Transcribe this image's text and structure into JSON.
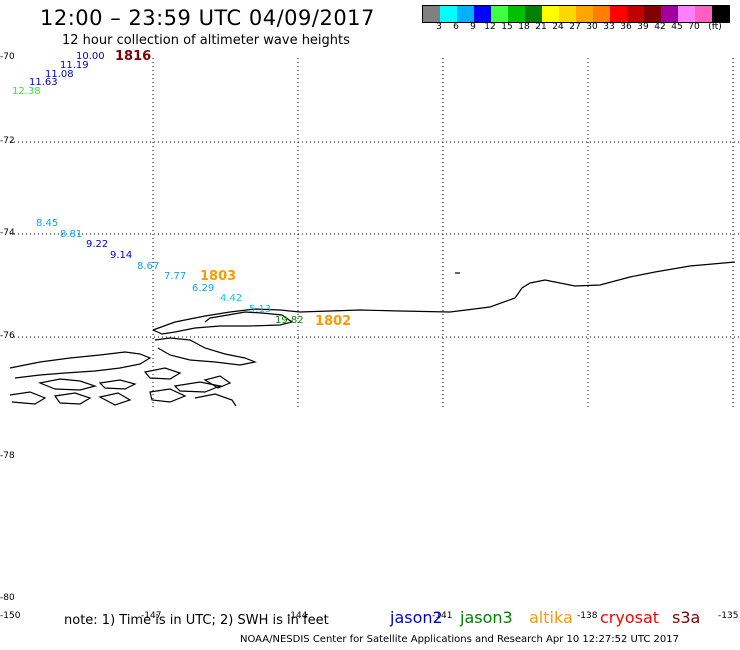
{
  "header": {
    "title": "12:00 – 23:59 UTC 04/09/2017",
    "subtitle": "12 hour collection of altimeter wave heights"
  },
  "colorbar": {
    "colors": [
      "#808080",
      "#00ffff",
      "#00b2ff",
      "#0000ff",
      "#40ff40",
      "#00c000",
      "#008000",
      "#ffff00",
      "#ffd700",
      "#ffa500",
      "#ff8000",
      "#ff0000",
      "#c00000",
      "#800000",
      "#a000a0",
      "#ff80ff",
      "#ff60c0",
      "#000000"
    ],
    "labels": [
      "3",
      "6",
      "9",
      "12",
      "15",
      "18",
      "21",
      "24",
      "27",
      "30",
      "33",
      "36",
      "39",
      "42",
      "45",
      "70",
      "(ft)"
    ]
  },
  "axes": {
    "lat_labels": [
      "-70",
      "-72",
      "-74",
      "-76",
      "-78",
      "-80"
    ],
    "lon_labels": [
      "-150",
      "-147",
      "-144",
      "-141",
      "-138",
      "-135"
    ]
  },
  "observations": [
    {
      "text": "10.00",
      "color": "#0000cc"
    },
    {
      "text": "11.19",
      "color": "#0000cc"
    },
    {
      "text": "11.08",
      "color": "#0000cc"
    },
    {
      "text": "11.63",
      "color": "#0000cc"
    },
    {
      "text": "12.38",
      "color": "#40e040"
    },
    {
      "text": "8.45",
      "color": "#00aaee"
    },
    {
      "text": "8.81",
      "color": "#00aaee"
    },
    {
      "text": "9.22",
      "color": "#0000cc"
    },
    {
      "text": "9.14",
      "color": "#0000cc"
    },
    {
      "text": "8.67",
      "color": "#00aaee"
    },
    {
      "text": "7.77",
      "color": "#00aaee"
    },
    {
      "text": "6.29",
      "color": "#00aaee"
    },
    {
      "text": "4.42",
      "color": "#00ccee"
    },
    {
      "text": "5.13",
      "color": "#00ccee"
    },
    {
      "text": "19.82",
      "color": "#008000"
    }
  ],
  "pass_times": [
    {
      "text": "1816",
      "color": "#800000"
    },
    {
      "text": "1803",
      "color": "#ff9900"
    },
    {
      "text": "1802",
      "color": "#ff9900"
    }
  ],
  "footer": {
    "note": "note: 1) Time is in UTC; 2) SWH is in feet",
    "legend": [
      {
        "text": "jason2",
        "color": "#0000cc"
      },
      {
        "text": "jason3",
        "color": "#008000"
      },
      {
        "text": "altika",
        "color": "#ff9900"
      },
      {
        "text": "cryosat",
        "color": "#ff0000"
      },
      {
        "text": "s3a",
        "color": "#800000"
      }
    ],
    "credit": "NOAA/NESDIS Center for Satellite Applications and Research    Apr 10 12:27:52 UTC 2017"
  }
}
